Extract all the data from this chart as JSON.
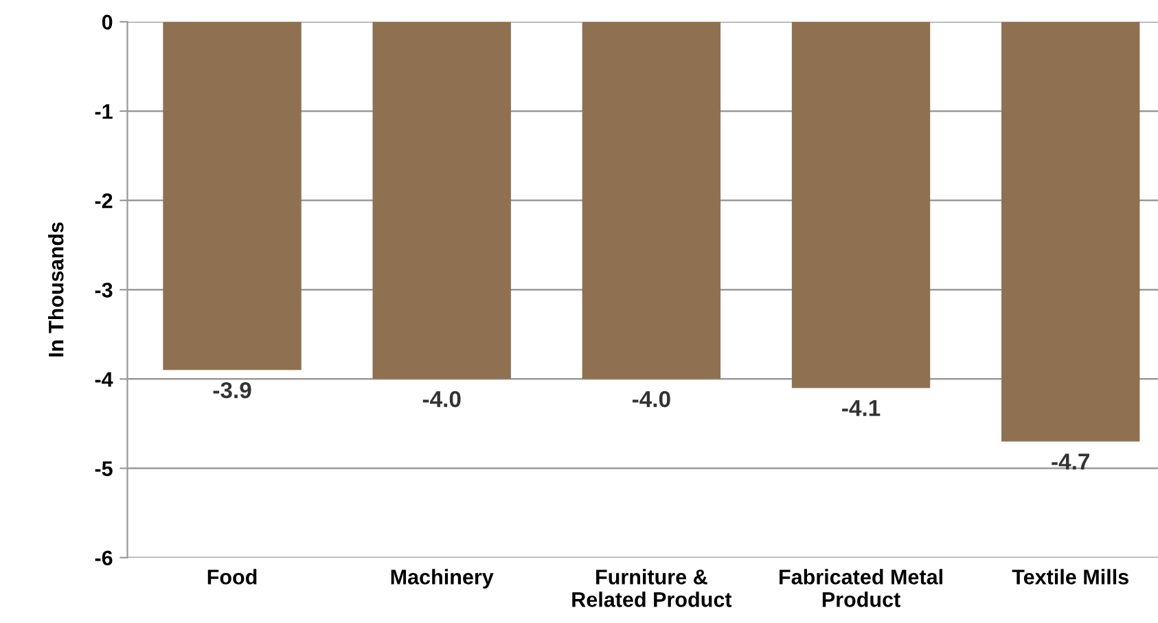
{
  "chart_data": {
    "type": "bar",
    "ylabel": "In Thousands",
    "categories": [
      "Food",
      "Machinery",
      "Furniture &\nRelated Product",
      "Fabricated Metal\nProduct",
      "Textile Mills"
    ],
    "values": [
      -3.9,
      -4.0,
      -4.0,
      -4.1,
      -4.7
    ],
    "color": "#8f7050",
    "ylim": [
      -6,
      0
    ],
    "yticks": [
      0,
      -1,
      -2,
      -3,
      -4,
      -5,
      -6
    ],
    "value_labels": [
      "-3.9",
      "-4.0",
      "-4.0",
      "-4.1",
      "-4.7"
    ],
    "grid": "y",
    "legend": false
  }
}
